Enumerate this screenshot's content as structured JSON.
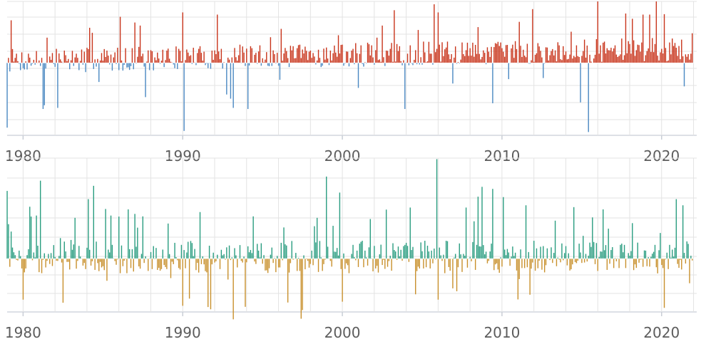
{
  "chart_data": [
    {
      "type": "bar",
      "x_axis": {
        "min": 1979.0,
        "max": 2022.2,
        "ticks": [
          1980,
          1990,
          2000,
          2010,
          2020
        ],
        "tick_labels": [
          "1980",
          "1990",
          "2000",
          "2010",
          "2020"
        ]
      },
      "ylim": [
        -3.3,
        2.8
      ],
      "grid": true,
      "positive_color": "#c8341b",
      "negative_color": "#4a88c2",
      "series": [
        {
          "values": []
        }
      ]
    },
    {
      "type": "bar",
      "x_axis": {
        "min": 1979.0,
        "max": 2022.2,
        "ticks": [
          1980,
          1990,
          2000,
          2010,
          2020
        ],
        "tick_labels": [
          "1980",
          "1990",
          "2000",
          "2010",
          "2020"
        ]
      },
      "ylim": [
        -2.6,
        4.9
      ],
      "grid": true,
      "positive_color": "#2a9d80",
      "negative_color": "#c8902c",
      "series": [
        {
          "values": []
        }
      ]
    }
  ]
}
